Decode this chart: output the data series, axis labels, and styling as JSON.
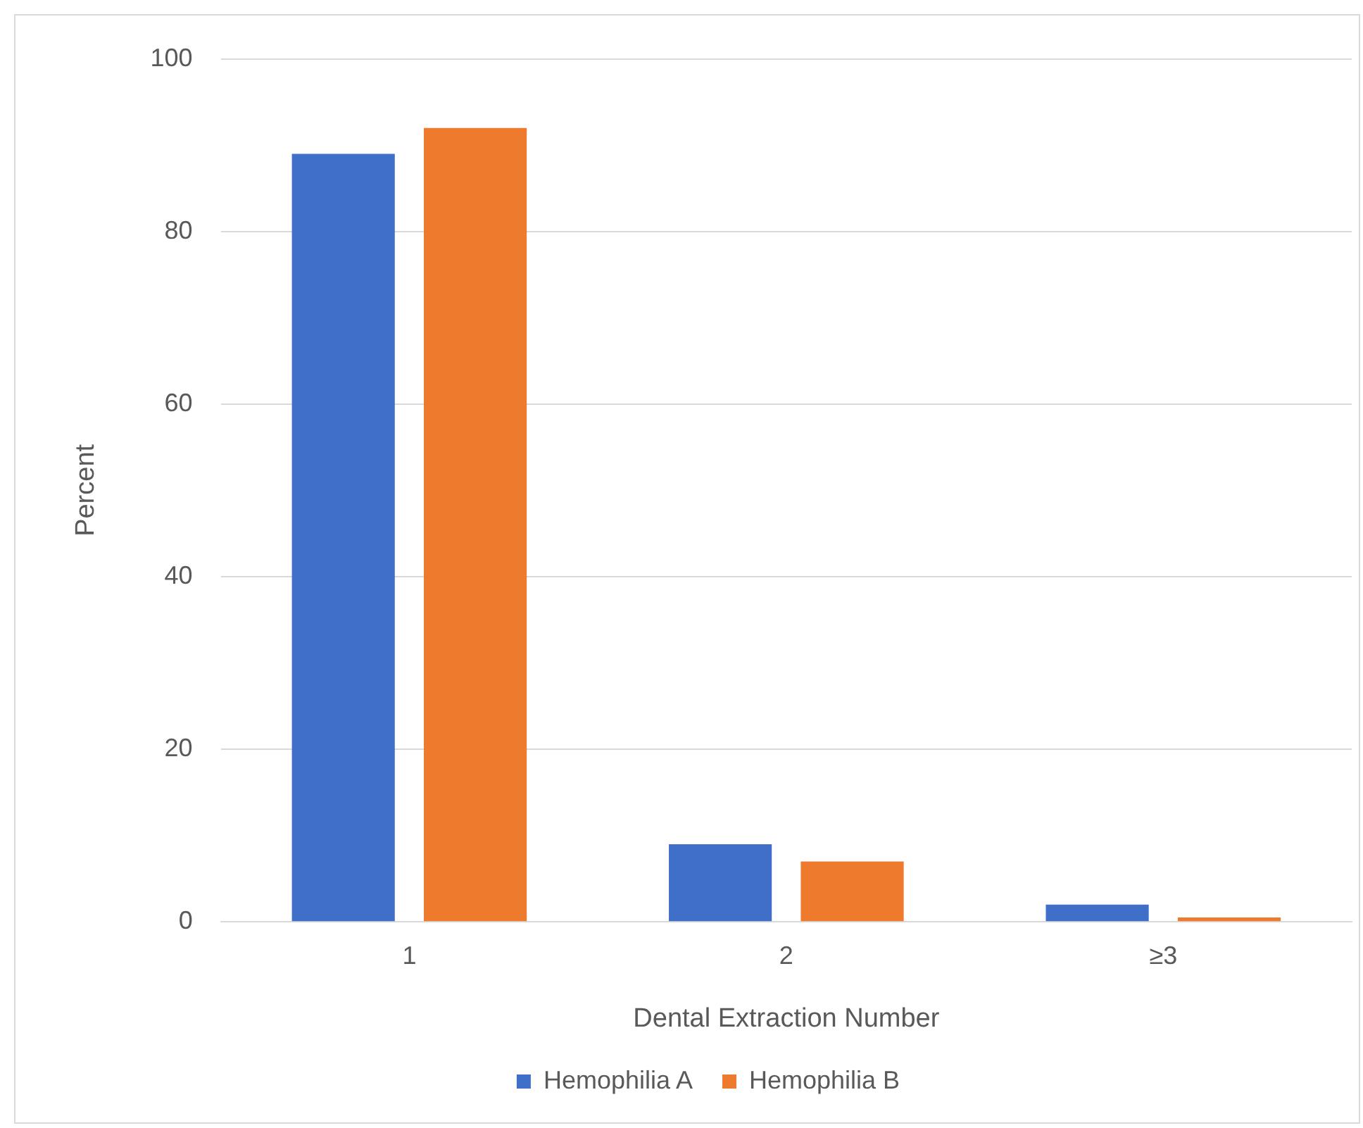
{
  "chart_data": {
    "type": "bar",
    "xlabel": "Dental Extraction Number",
    "ylabel": "Percent",
    "categories": [
      "1",
      "2",
      "≥3"
    ],
    "series": [
      {
        "name": "Hemophilia A",
        "color": "#3f6fc9",
        "values": [
          89,
          9,
          2
        ]
      },
      {
        "name": "Hemophilia B",
        "color": "#ee7a2e",
        "values": [
          92,
          7,
          0.5
        ]
      }
    ],
    "ylim": [
      0,
      100
    ],
    "yticks": [
      0,
      20,
      40,
      60,
      80,
      100
    ],
    "grid": "y",
    "legend": "bottom"
  }
}
